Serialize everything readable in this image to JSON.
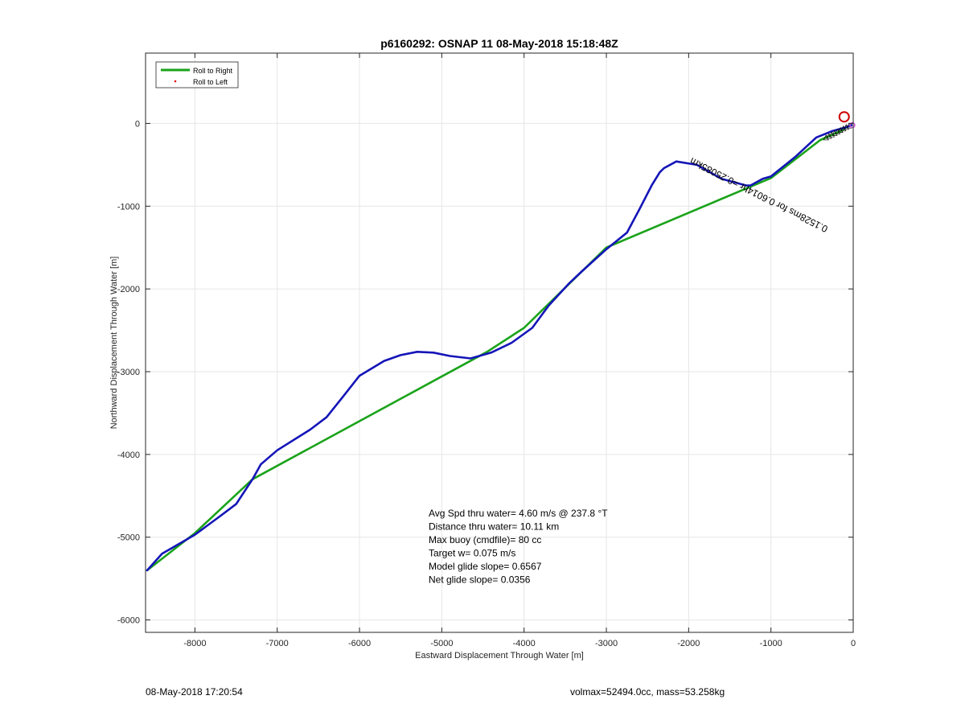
{
  "chart_data": {
    "type": "line",
    "title": "p6160292: OSNAP 11 08-May-2018 15:18:48Z",
    "xlabel": "Eastward Displacement Through Water [m]",
    "ylabel": "Northward Displacement Through Water [m]",
    "xlim": [
      -8600,
      0
    ],
    "ylim": [
      -6150,
      850
    ],
    "grid": true,
    "legend_placement": "top-left",
    "xticks": [
      -8000,
      -7000,
      -6000,
      -5000,
      -4000,
      -3000,
      -2000,
      -1000,
      0
    ],
    "yticks": [
      0,
      -1000,
      -2000,
      -3000,
      -4000,
      -5000,
      -6000
    ],
    "series": [
      {
        "name": "Roll to Right",
        "color": "#1aa31a",
        "x": [
          -8580,
          -8000,
          -7300,
          -4450,
          -4000,
          -3000,
          -1000,
          -400,
          -150,
          -100
        ],
        "y": [
          -5400,
          -4950,
          -4300,
          -2760,
          -2470,
          -1500,
          -660,
          -200,
          -90,
          -60
        ]
      },
      {
        "name": "Roll to Left",
        "color": "#e60000",
        "x": [],
        "y": []
      },
      {
        "name": "",
        "color": "#1515b8",
        "x": [
          -8580,
          -8400,
          -8000,
          -7700,
          -7500,
          -7300,
          -7200,
          -7000,
          -6600,
          -6400,
          -6200,
          -6000,
          -5700,
          -5500,
          -5300,
          -5100,
          -4900,
          -4650,
          -4400,
          -4150,
          -3900,
          -3700,
          -3450,
          -3300,
          -3000,
          -2750,
          -2600,
          -2450,
          -2350,
          -2300,
          -2150,
          -1900,
          -1600,
          -1300,
          -1250,
          -1100,
          -1000,
          -700,
          -450,
          -350,
          -250,
          -100,
          -20
        ],
        "y": [
          -5400,
          -5200,
          -4970,
          -4750,
          -4600,
          -4300,
          -4120,
          -3950,
          -3700,
          -3550,
          -3300,
          -3050,
          -2870,
          -2800,
          -2760,
          -2770,
          -2810,
          -2840,
          -2770,
          -2650,
          -2470,
          -2200,
          -1930,
          -1790,
          -1520,
          -1320,
          -1040,
          -750,
          -590,
          -540,
          -460,
          -500,
          -670,
          -750,
          -750,
          -670,
          -640,
          -400,
          -170,
          -130,
          -90,
          -50,
          -20
        ]
      }
    ],
    "markers": [
      {
        "label": "start",
        "shape": "circle",
        "color": "#cc0000",
        "x": -110,
        "y": 80
      },
      {
        "label": "end",
        "shape": "small-circle",
        "color": "#cc55cc",
        "x": -10,
        "y": -20
      }
    ],
    "segment_label": {
      "text": "0.1528ms for 0.6014hr =0.25085km",
      "rotation_deg": 207,
      "x": -1130,
      "y": -830
    },
    "annotations": [
      "Avg Spd thru water=  4.60 m/s @ 237.8 °T",
      "Distance thru water= 10.11 km",
      "Max buoy (cmdfile)= 80 cc",
      "Target w= 0.075 m/s",
      "Model glide slope= 0.6567",
      "Net glide slope= 0.0356"
    ]
  },
  "footer": {
    "left": "08-May-2018 17:20:54",
    "right": "volmax=52494.0cc, mass=53.258kg"
  }
}
